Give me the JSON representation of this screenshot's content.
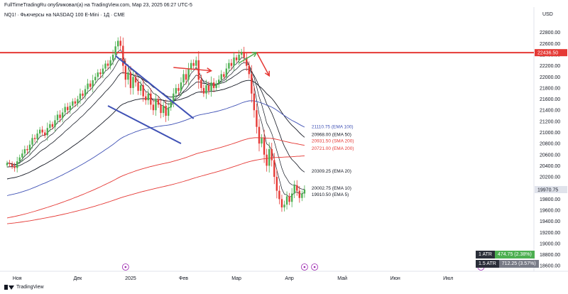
{
  "header": {
    "publisher": "FullTimeTradingRu опубликовал(а) на TradingView.com, Мар 23, 2025 06:27 UTC-5",
    "symbol_line": "NQ1! · Фьючерсы на NASDAQ 100 E-Mini · 1Д · CME"
  },
  "footer": {
    "brand": "TradingView"
  },
  "atr_panel": [
    {
      "label": "1 ATR",
      "value": "474.75 (2.38%)",
      "color": "#4caf50"
    },
    {
      "label": "1.5 ATR",
      "value": "712.25 (3.57%)",
      "color": "#787b86"
    }
  ],
  "chart_data": {
    "type": "candlestick",
    "currency": "USD",
    "y_ticks": [
      "22800.00",
      "22600.00",
      "22400.00",
      "22200.00",
      "22000.00",
      "21800.00",
      "21600.00",
      "21400.00",
      "21200.00",
      "21000.00",
      "20800.00",
      "20600.00",
      "20400.00",
      "20200.00",
      "20000.00",
      "19800.00",
      "19600.00",
      "19400.00",
      "19200.00",
      "19000.00",
      "18800.00",
      "18600.00"
    ],
    "ylim": [
      18500,
      22950
    ],
    "x_ticks": [
      "Ноя",
      "Дек",
      "2025",
      "Фев",
      "Мар",
      "Апр",
      "Май",
      "Июн",
      "Июл"
    ],
    "resistance": {
      "value": 22436.5,
      "label": "22436.50",
      "color": "#e53935"
    },
    "last_price": {
      "value": 19970.75,
      "label": "19970.75"
    },
    "ema_labels": [
      {
        "text": "21110.75 (EMA 100)",
        "value": 21110.75,
        "color": "#3f51b5"
      },
      {
        "text": "20968.00 (EMA 50)",
        "value": 20968.0,
        "color": "#131722"
      },
      {
        "text": "20931.50 (SMA 200)",
        "value": 20931.5,
        "color": "#e53935"
      },
      {
        "text": "20721.00 (EMA 200)",
        "value": 20721.0,
        "color": "#e53935"
      },
      {
        "text": "20309.25 (EMA 20)",
        "value": 20309.25,
        "color": "#131722"
      },
      {
        "text": "20002.75 (EMA 10)",
        "value": 20002.75,
        "color": "#131722"
      },
      {
        "text": "19910.50 (EMA 5)",
        "value": 19910.5,
        "color": "#131722"
      }
    ],
    "colors": {
      "up": "#4caf50",
      "down": "#e53935",
      "ema100": "#3f51b5",
      "ema200": "#e53935",
      "ema_fast": "#131722",
      "channel": "#3f51b5",
      "annot_red": "#e53935",
      "annot_green": "#4caf50"
    },
    "closes": [
      20450,
      20430,
      20390,
      20360,
      20480,
      20550,
      20620,
      20700,
      20680,
      20780,
      20900,
      20880,
      20980,
      21050,
      21000,
      20950,
      21080,
      21150,
      21100,
      21220,
      21320,
      21260,
      21360,
      21460,
      21400,
      21480,
      21560,
      21520,
      21600,
      21700,
      21660,
      21780,
      21880,
      21820,
      21940,
      22000,
      22080,
      22050,
      22150,
      22240,
      22200,
      22300,
      22400,
      22550,
      22650,
      22560,
      22200,
      21950,
      22080,
      21800,
      22000,
      21900,
      21750,
      21850,
      21650,
      21580,
      21700,
      21500,
      21400,
      21600,
      21500,
      21350,
      21480,
      21300,
      21450,
      21550,
      21700,
      21800,
      21750,
      21900,
      22050,
      21950,
      22150,
      22250,
      22200,
      22300,
      21950,
      21800,
      21700,
      21850,
      21750,
      21900,
      21800,
      21880,
      21950,
      22050,
      22000,
      22150,
      22250,
      22200,
      22350,
      22300,
      22400,
      22450,
      22350,
      22200,
      22050,
      21700,
      21400,
      21100,
      20800,
      20900,
      20600,
      20400,
      20700,
      20500,
      20200,
      19950,
      19800,
      19650,
      19700,
      19850,
      19750,
      19900,
      20050,
      19950,
      19820,
      19900,
      19970.75
    ],
    "annotations": {
      "channel_upper": {
        "from": [
          43,
          22380
        ],
        "to": [
          74,
          21250
        ]
      },
      "channel_lower": {
        "from": [
          40,
          21480
        ],
        "to": [
          69,
          20800
        ]
      },
      "arrow_red_long": {
        "from": [
          66,
          22170
        ],
        "to": [
          81,
          22110
        ]
      },
      "arrow_green": {
        "from": [
          92,
          22250
        ],
        "to": [
          99,
          22440
        ]
      },
      "arrow_red_short": {
        "from": [
          99,
          22440
        ],
        "to": [
          104,
          22020
        ]
      }
    }
  }
}
